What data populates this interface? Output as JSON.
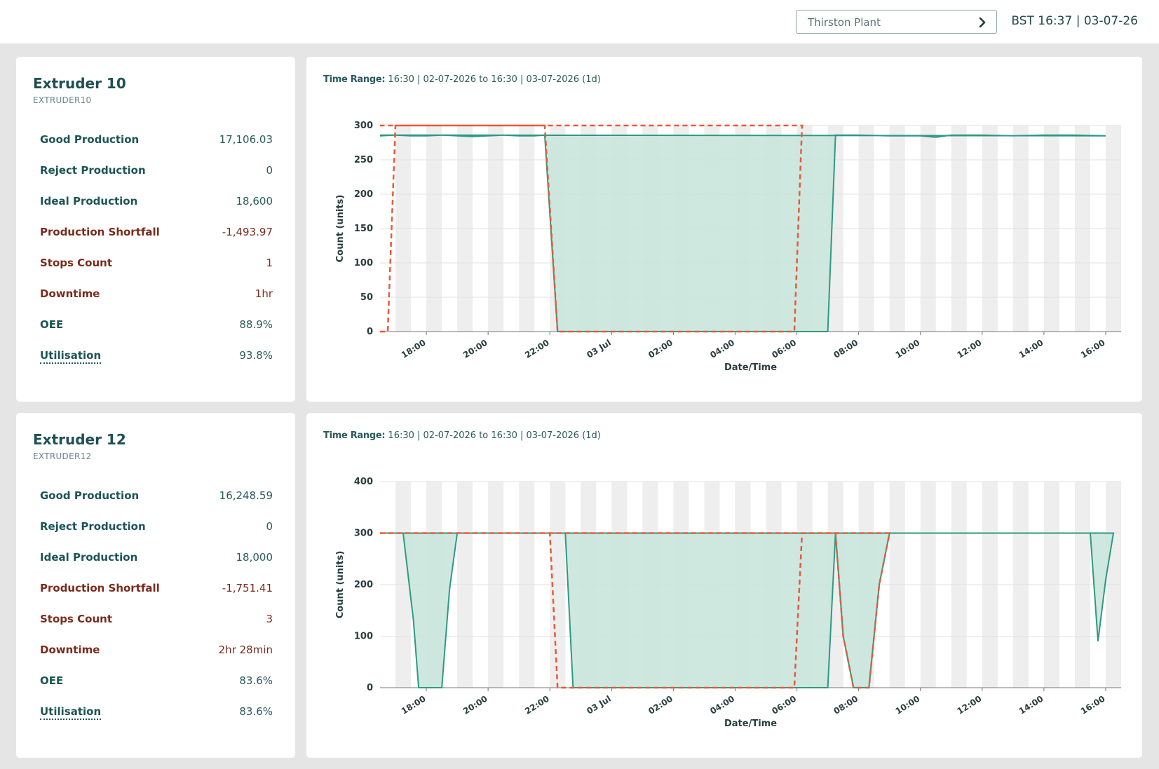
{
  "header": {
    "site_label": "Thirston Plant",
    "clock": "BST 16:37 | 03-07-26"
  },
  "machines": [
    {
      "name": "Extruder 10",
      "id": "EXTRUDER10",
      "metrics": [
        {
          "label": "Good Production",
          "value": "17,106.03",
          "tone": "teal"
        },
        {
          "label": "Reject Production",
          "value": "0",
          "tone": "teal"
        },
        {
          "label": "Ideal Production",
          "value": "18,600",
          "tone": "teal"
        },
        {
          "label": "Production Shortfall",
          "value": "-1,493.97",
          "tone": "red"
        },
        {
          "label": "Stops Count",
          "value": "1",
          "tone": "red"
        },
        {
          "label": "Downtime",
          "value": "1hr",
          "tone": "red"
        },
        {
          "label": "OEE",
          "value": "88.9%",
          "tone": "teal"
        },
        {
          "label": "Utilisation",
          "value": "93.8%",
          "tone": "teal",
          "link": true
        }
      ],
      "time_range_label": "Time Range:",
      "time_range_value": "16:30 | 02-07-2026 to 16:30 | 03-07-2026 (1d)"
    },
    {
      "name": "Extruder 12",
      "id": "EXTRUDER12",
      "metrics": [
        {
          "label": "Good Production",
          "value": "16,248.59",
          "tone": "teal"
        },
        {
          "label": "Reject Production",
          "value": "0",
          "tone": "teal"
        },
        {
          "label": "Ideal Production",
          "value": "18,000",
          "tone": "teal"
        },
        {
          "label": "Production Shortfall",
          "value": "-1,751.41",
          "tone": "red"
        },
        {
          "label": "Stops Count",
          "value": "3",
          "tone": "red"
        },
        {
          "label": "Downtime",
          "value": "2hr 28min",
          "tone": "red"
        },
        {
          "label": "OEE",
          "value": "83.6%",
          "tone": "teal"
        },
        {
          "label": "Utilisation",
          "value": "83.6%",
          "tone": "teal",
          "link": true
        }
      ],
      "time_range_label": "Time Range:",
      "time_range_value": "16:30 | 02-07-2026 to 16:30 | 03-07-2026 (1d)"
    }
  ],
  "colors": {
    "actual_line": "#2e9a80",
    "actual_fill": "#c9e5dc",
    "target_line": "#e8593a",
    "shift_band": "#eeeeee",
    "grid": "#e1e1e1"
  },
  "chart_data": [
    {
      "type": "area",
      "xlabel": "Date/Time",
      "ylabel": "Count (units)",
      "ylim": [
        0,
        300
      ],
      "yticks": [
        0,
        50,
        100,
        150,
        200,
        250,
        300
      ],
      "x_range": [
        "16:30",
        "16:30 (+1d)"
      ],
      "xticks": [
        "18:00",
        "20:00",
        "22:00",
        "03 Jul",
        "02:00",
        "04:00",
        "06:00",
        "08:00",
        "10:00",
        "12:00",
        "14:00",
        "16:00"
      ],
      "series": [
        {
          "style": "area",
          "points": [
            [
              "16:30",
              285
            ],
            [
              "17:00",
              286
            ],
            [
              "17:30",
              285
            ],
            [
              "18:00",
              285
            ],
            [
              "18:30",
              286
            ],
            [
              "19:00",
              285
            ],
            [
              "19:30",
              284
            ],
            [
              "20:00",
              285
            ],
            [
              "20:30",
              286
            ],
            [
              "21:00",
              285
            ],
            [
              "21:30",
              285
            ],
            [
              "21:50",
              286
            ],
            [
              "22:15",
              0
            ],
            [
              "06:00",
              0
            ],
            [
              "07:00",
              0
            ],
            [
              "07:15",
              286
            ],
            [
              "08:00",
              286
            ],
            [
              "09:00",
              285
            ],
            [
              "10:00",
              285
            ],
            [
              "10:30",
              283
            ],
            [
              "11:00",
              286
            ],
            [
              "12:00",
              286
            ],
            [
              "13:00",
              285
            ],
            [
              "14:00",
              286
            ],
            [
              "15:00",
              286
            ],
            [
              "16:00",
              285
            ],
            [
              "16:30",
              286
            ]
          ]
        },
        {
          "style": "dashed",
          "points": [
            [
              "16:30",
              0
            ],
            [
              "16:45",
              0
            ],
            [
              "17:00",
              300
            ],
            [
              "21:50",
              300
            ],
            [
              "22:15",
              0
            ],
            [
              "05:55",
              0
            ],
            [
              "06:10",
              300
            ],
            [
              "16:30",
              300
            ]
          ]
        }
      ]
    },
    {
      "type": "area",
      "xlabel": "Date/Time",
      "ylabel": "Count (units)",
      "ylim": [
        0,
        400
      ],
      "yticks": [
        0,
        100,
        200,
        300,
        400
      ],
      "x_range": [
        "16:30",
        "16:30 (+1d)"
      ],
      "xticks": [
        "18:00",
        "20:00",
        "22:00",
        "03 Jul",
        "02:00",
        "04:00",
        "06:00",
        "08:00",
        "10:00",
        "12:00",
        "14:00",
        "16:00"
      ],
      "series": [
        {
          "style": "area",
          "points": [
            [
              "16:30",
              300
            ],
            [
              "17:15",
              300
            ],
            [
              "17:35",
              130
            ],
            [
              "17:45",
              0
            ],
            [
              "18:30",
              0
            ],
            [
              "18:45",
              190
            ],
            [
              "19:00",
              300
            ],
            [
              "20:00",
              300
            ],
            [
              "21:00",
              300
            ],
            [
              "22:00",
              300
            ],
            [
              "22:30",
              300
            ],
            [
              "22:45",
              0
            ],
            [
              "06:00",
              0
            ],
            [
              "07:00",
              0
            ],
            [
              "07:15",
              300
            ],
            [
              "07:30",
              100
            ],
            [
              "07:50",
              0
            ],
            [
              "08:20",
              0
            ],
            [
              "08:40",
              200
            ],
            [
              "09:00",
              300
            ],
            [
              "10:00",
              300
            ],
            [
              "11:00",
              300
            ],
            [
              "12:00",
              300
            ],
            [
              "13:00",
              300
            ],
            [
              "14:00",
              300
            ],
            [
              "15:30",
              300
            ],
            [
              "15:45",
              90
            ],
            [
              "16:00",
              210
            ],
            [
              "16:15",
              300
            ],
            [
              "16:30",
              300
            ]
          ]
        },
        {
          "style": "dashed",
          "points": [
            [
              "16:30",
              300
            ],
            [
              "22:00",
              300
            ],
            [
              "22:15",
              0
            ],
            [
              "05:55",
              0
            ],
            [
              "06:10",
              300
            ],
            [
              "07:15",
              300
            ],
            [
              "07:30",
              100
            ],
            [
              "07:50",
              0
            ],
            [
              "08:20",
              0
            ],
            [
              "08:40",
              200
            ],
            [
              "09:00",
              300
            ],
            [
              "16:30",
              300
            ]
          ]
        }
      ]
    }
  ]
}
